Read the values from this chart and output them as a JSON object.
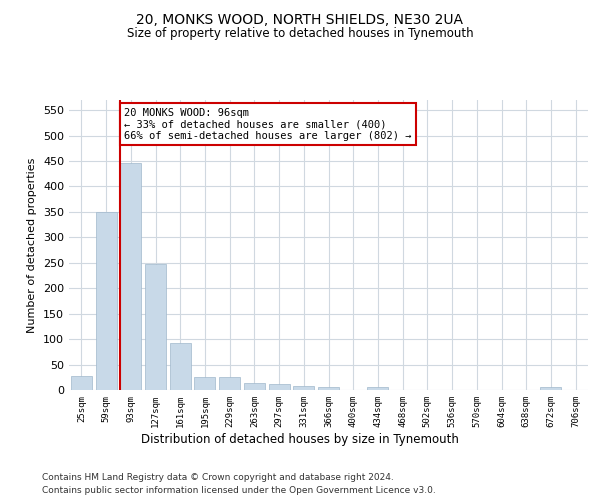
{
  "title": "20, MONKS WOOD, NORTH SHIELDS, NE30 2UA",
  "subtitle": "Size of property relative to detached houses in Tynemouth",
  "xlabel": "Distribution of detached houses by size in Tynemouth",
  "ylabel": "Number of detached properties",
  "bar_labels": [
    "25sqm",
    "59sqm",
    "93sqm",
    "127sqm",
    "161sqm",
    "195sqm",
    "229sqm",
    "263sqm",
    "297sqm",
    "331sqm",
    "366sqm",
    "400sqm",
    "434sqm",
    "468sqm",
    "502sqm",
    "536sqm",
    "570sqm",
    "604sqm",
    "638sqm",
    "672sqm",
    "706sqm"
  ],
  "bar_values": [
    28,
    350,
    447,
    247,
    93,
    25,
    25,
    13,
    11,
    8,
    5,
    0,
    5,
    0,
    0,
    0,
    0,
    0,
    0,
    5,
    0
  ],
  "bar_color": "#c8d9e8",
  "bar_edge_color": "#a0b8cc",
  "grid_color": "#d0d8e0",
  "background_color": "#ffffff",
  "property_line_index": 2,
  "annotation_text": "20 MONKS WOOD: 96sqm\n← 33% of detached houses are smaller (400)\n66% of semi-detached houses are larger (802) →",
  "annotation_box_color": "#ffffff",
  "annotation_box_edge_color": "#cc0000",
  "property_line_color": "#cc0000",
  "ylim": [
    0,
    570
  ],
  "yticks": [
    0,
    50,
    100,
    150,
    200,
    250,
    300,
    350,
    400,
    450,
    500,
    550
  ],
  "footer1": "Contains HM Land Registry data © Crown copyright and database right 2024.",
  "footer2": "Contains public sector information licensed under the Open Government Licence v3.0."
}
